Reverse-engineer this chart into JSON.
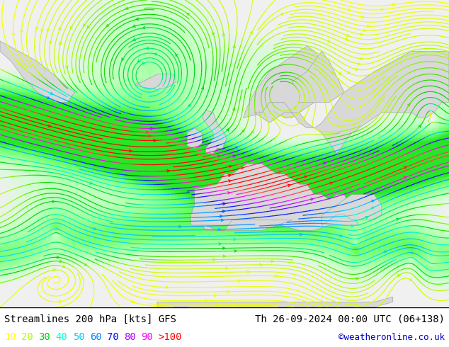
{
  "title_left": "Streamlines 200 hPa [kts] GFS",
  "title_right": "Th 26-09-2024 00:00 UTC (06+138)",
  "credit": "©weatheronline.co.uk",
  "legend_values": [
    "10",
    "20",
    "30",
    "40",
    "50",
    "60",
    "70",
    "80",
    "90",
    ">100"
  ],
  "legend_colors": [
    "#ffff00",
    "#aaff00",
    "#00cc00",
    "#00ffcc",
    "#00ccff",
    "#0088ff",
    "#0000ff",
    "#aa00ff",
    "#ff00ff",
    "#ff0000"
  ],
  "bg_low_color": "#f0f0f0",
  "bg_high_color": "#aaffaa",
  "bottom_bar_color": "#ffffff",
  "fig_width": 6.34,
  "fig_height": 4.9,
  "dpi": 100,
  "font_family": "monospace",
  "title_fontsize": 10,
  "legend_fontsize": 10,
  "credit_color": "#0000cc"
}
